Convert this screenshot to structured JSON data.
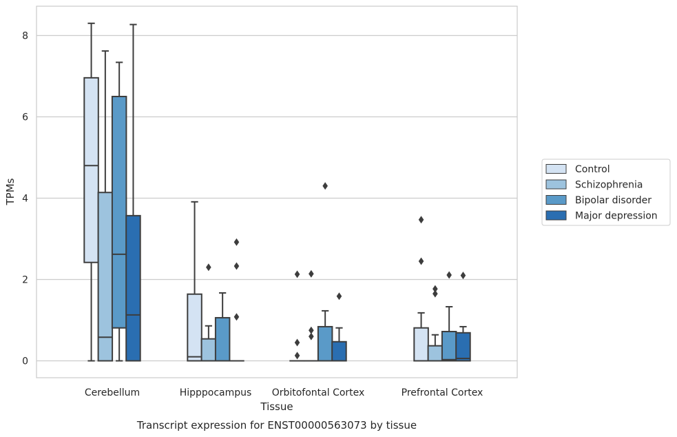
{
  "chart_data": {
    "type": "box",
    "caption": "Transcript expression for ENST00000563073 by tissue",
    "xlabel": "Tissue",
    "ylabel": "TPMs",
    "ylim": [
      -0.4,
      8.7
    ],
    "yticks": [
      0,
      2,
      4,
      6,
      8
    ],
    "grid": "horizontal",
    "legend_position": "right",
    "categories": [
      "Cerebellum",
      "Hipppocampus",
      "Orbitofontal Cortex",
      "Prefrontal Cortex"
    ],
    "series": [
      {
        "name": "Control",
        "color": "#d4e3f3",
        "boxes": [
          {
            "whislo": 0.0,
            "q1": 2.42,
            "med": 4.8,
            "q3": 6.96,
            "whishi": 8.3,
            "fliers": []
          },
          {
            "whislo": 0.0,
            "q1": 0.0,
            "med": 0.1,
            "q3": 1.64,
            "whishi": 3.91,
            "fliers": []
          },
          {
            "whislo": 0.0,
            "q1": 0.0,
            "med": 0.0,
            "q3": 0.0,
            "whishi": 0.0,
            "fliers": [
              0.13,
              0.45,
              2.13
            ]
          },
          {
            "whislo": 0.0,
            "q1": 0.0,
            "med": 0.0,
            "q3": 0.81,
            "whishi": 1.18,
            "fliers": [
              2.45,
              3.47
            ]
          }
        ]
      },
      {
        "name": "Schizophrenia",
        "color": "#9dc3de",
        "boxes": [
          {
            "whislo": 0.0,
            "q1": 0.0,
            "med": 0.58,
            "q3": 4.14,
            "whishi": 7.62,
            "fliers": []
          },
          {
            "whislo": 0.0,
            "q1": 0.0,
            "med": 0.0,
            "q3": 0.54,
            "whishi": 0.86,
            "fliers": [
              2.3
            ]
          },
          {
            "whislo": 0.0,
            "q1": 0.0,
            "med": 0.0,
            "q3": 0.0,
            "whishi": 0.0,
            "fliers": [
              0.6,
              0.75,
              2.14
            ]
          },
          {
            "whislo": 0.0,
            "q1": 0.0,
            "med": 0.0,
            "q3": 0.37,
            "whishi": 0.64,
            "fliers": [
              1.65,
              1.77
            ]
          }
        ]
      },
      {
        "name": "Bipolar disorder",
        "color": "#5a9ac8",
        "boxes": [
          {
            "whislo": 0.0,
            "q1": 0.81,
            "med": 2.62,
            "q3": 6.5,
            "whishi": 7.34,
            "fliers": []
          },
          {
            "whislo": 0.0,
            "q1": 0.0,
            "med": 0.0,
            "q3": 1.06,
            "whishi": 1.67,
            "fliers": []
          },
          {
            "whislo": 0.0,
            "q1": 0.0,
            "med": 0.0,
            "q3": 0.84,
            "whishi": 1.23,
            "fliers": [
              4.3
            ]
          },
          {
            "whislo": 0.0,
            "q1": 0.0,
            "med": 0.03,
            "q3": 0.72,
            "whishi": 1.33,
            "fliers": [
              2.11
            ]
          }
        ]
      },
      {
        "name": "Major depression",
        "color": "#2a6eb1",
        "boxes": [
          {
            "whislo": 0.0,
            "q1": 0.0,
            "med": 1.13,
            "q3": 3.57,
            "whishi": 8.27,
            "fliers": []
          },
          {
            "whislo": 0.0,
            "q1": 0.0,
            "med": 0.0,
            "q3": 0.0,
            "whishi": 0.0,
            "fliers": [
              1.08,
              2.33,
              2.92
            ]
          },
          {
            "whislo": 0.0,
            "q1": 0.0,
            "med": 0.0,
            "q3": 0.47,
            "whishi": 0.81,
            "fliers": [
              1.59
            ]
          },
          {
            "whislo": 0.0,
            "q1": 0.0,
            "med": 0.06,
            "q3": 0.69,
            "whishi": 0.84,
            "fliers": [
              2.1
            ]
          }
        ]
      }
    ]
  }
}
